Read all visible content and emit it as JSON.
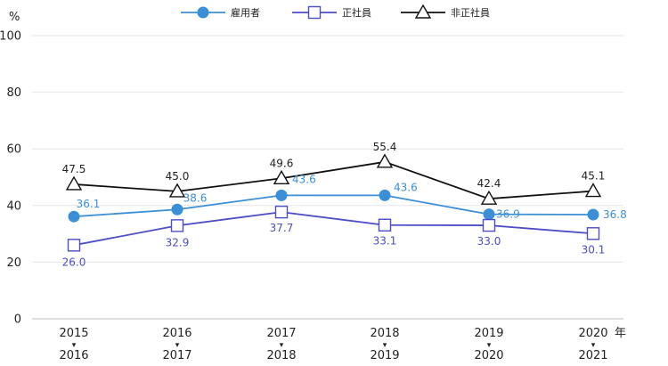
{
  "chart_data": {
    "type": "line",
    "y_unit": "%",
    "ylim": [
      0,
      100
    ],
    "yticks": [
      0,
      20,
      40,
      60,
      80,
      100
    ],
    "x_suffix": "年",
    "categories": [
      {
        "top": "2015",
        "bottom": "2016",
        "arrow": "▾"
      },
      {
        "top": "2016",
        "bottom": "2017",
        "arrow": "▾"
      },
      {
        "top": "2017",
        "bottom": "2018",
        "arrow": "▾"
      },
      {
        "top": "2018",
        "bottom": "2019",
        "arrow": "▾"
      },
      {
        "top": "2019",
        "bottom": "2020",
        "arrow": "▾"
      },
      {
        "top": "2020",
        "bottom": "2021",
        "arrow": "▾"
      }
    ],
    "series": [
      {
        "name": "雇用者",
        "marker": "circle",
        "line_color": "#3b8fd6",
        "label_color": "#3b8fd6",
        "values": [
          36.1,
          38.6,
          43.6,
          43.6,
          36.9,
          36.8
        ],
        "labels": [
          "36.1",
          "38.6",
          "43.6",
          "43.6",
          "36.9",
          "36.8"
        ]
      },
      {
        "name": "正社員",
        "marker": "square",
        "line_color": "#4d4dc8",
        "label_color": "#4d4dc8",
        "values": [
          26.0,
          32.9,
          37.7,
          33.1,
          33.0,
          30.1
        ],
        "labels": [
          "26.0",
          "32.9",
          "37.7",
          "33.1",
          "33.0",
          "30.1"
        ]
      },
      {
        "name": "非正社員",
        "marker": "triangle",
        "line_color": "#111111",
        "label_color": "#222222",
        "values": [
          47.5,
          45.0,
          49.6,
          55.4,
          42.4,
          45.1
        ],
        "labels": [
          "47.5",
          "45.0",
          "49.6",
          "55.4",
          "42.4",
          "45.1"
        ]
      }
    ],
    "grid": true,
    "legend": "top-center"
  }
}
